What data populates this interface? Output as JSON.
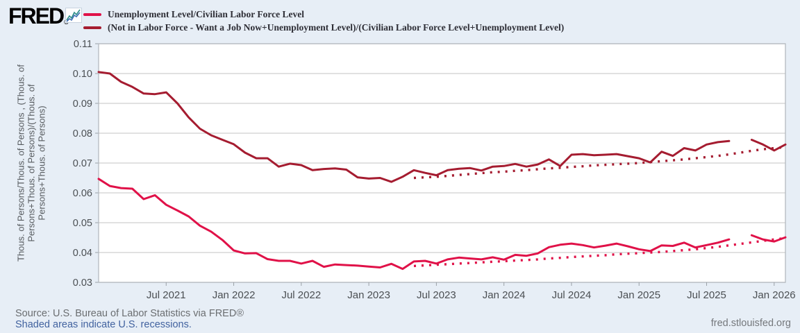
{
  "branding": {
    "logo_text": "FRED",
    "registered_mark": "®",
    "site_url": "fred.stlouisfed.org"
  },
  "footer": {
    "source_line": "Source: U.S. Bureau of Labor Statistics via FRED®",
    "recessions_note": "Shaded areas indicate U.S. recessions."
  },
  "chart_data": {
    "type": "line",
    "title": "",
    "xlabel": "",
    "ylabel": "Thous. of Persons/Thous. of Persons , (Thous. of Persons+Thous. of Persons)/(Thous. of Persons+Thous. of Persons)",
    "ylabel_lines": [
      "Thous. of Persons/Thous. of Persons , (Thous. of",
      "Persons+Thous. of Persons)/(Thous. of",
      "Persons+Thous. of Persons)"
    ],
    "ylim": [
      0.03,
      0.11
    ],
    "yticks": [
      "0.11",
      "0.10",
      "0.09",
      "0.08",
      "0.07",
      "0.06",
      "0.05",
      "0.04",
      "0.03"
    ],
    "grid": "horizontal",
    "legend_position": "top-left",
    "plot_bg": "#ffffff",
    "grid_color": "#cfcfcf",
    "border_color": "#b4bac0",
    "tick_color": "#9aa0a6",
    "months": [
      "2021-01",
      "2021-02",
      "2021-03",
      "2021-04",
      "2021-05",
      "2021-06",
      "2021-07",
      "2021-08",
      "2021-09",
      "2021-10",
      "2021-11",
      "2021-12",
      "2022-01",
      "2022-02",
      "2022-03",
      "2022-04",
      "2022-05",
      "2022-06",
      "2022-07",
      "2022-08",
      "2022-09",
      "2022-10",
      "2022-11",
      "2022-12",
      "2023-01",
      "2023-02",
      "2023-03",
      "2023-04",
      "2023-05",
      "2023-06",
      "2023-07",
      "2023-08",
      "2023-09",
      "2023-10",
      "2023-11",
      "2023-12",
      "2024-01",
      "2024-02",
      "2024-03",
      "2024-04",
      "2024-05",
      "2024-06",
      "2024-07",
      "2024-08",
      "2024-09",
      "2024-10",
      "2024-11",
      "2024-12",
      "2025-01",
      "2025-02",
      "2025-03",
      "2025-04",
      "2025-05",
      "2025-06",
      "2025-07",
      "2025-08",
      "2025-09",
      "2025-10",
      "2025-11",
      "2025-12",
      "2026-01",
      "2026-02"
    ],
    "xticks": [
      {
        "index": 6,
        "label": "Jul 2021"
      },
      {
        "index": 12,
        "label": "Jan 2022"
      },
      {
        "index": 18,
        "label": "Jul 2022"
      },
      {
        "index": 24,
        "label": "Jan 2023"
      },
      {
        "index": 30,
        "label": "Jul 2023"
      },
      {
        "index": 36,
        "label": "Jan 2024"
      },
      {
        "index": 42,
        "label": "Jul 2024"
      },
      {
        "index": 48,
        "label": "Jan 2025"
      },
      {
        "index": 54,
        "label": "Jul 2025"
      },
      {
        "index": 60,
        "label": "Jan 2026"
      }
    ],
    "series": [
      {
        "name": "Unemployment Level/Civilian Labor Force Level",
        "style": "solid",
        "color": "#e01148",
        "values": [
          0.0647,
          0.0623,
          0.0616,
          0.0614,
          0.0579,
          0.0592,
          0.056,
          0.0541,
          0.0521,
          0.049,
          0.047,
          0.0442,
          0.0407,
          0.0397,
          0.0398,
          0.0378,
          0.0372,
          0.0372,
          0.0363,
          0.0372,
          0.0352,
          0.036,
          0.0358,
          0.0356,
          0.0353,
          0.035,
          0.0362,
          0.0345,
          0.037,
          0.0372,
          0.0363,
          0.0377,
          0.0383,
          0.038,
          0.0377,
          0.0384,
          0.0376,
          0.0392,
          0.0389,
          0.0397,
          0.0418,
          0.0426,
          0.043,
          0.0425,
          0.0417,
          0.0423,
          0.043,
          0.0421,
          0.0411,
          0.0405,
          0.0424,
          0.0422,
          0.0433,
          0.0417,
          0.0425,
          0.0433,
          0.0444,
          null,
          0.0458,
          0.0444,
          0.0437,
          0.0451
        ]
      },
      {
        "name": "(Not in Labor Force - Want a Job Now+Unemployment Level)/(Civilian Labor Force Level+Unemployment Level)",
        "style": "solid",
        "color": "#a51c30",
        "values": [
          0.1005,
          0.1,
          0.0972,
          0.0955,
          0.0933,
          0.0931,
          0.0937,
          0.09,
          0.0853,
          0.0815,
          0.0793,
          0.0778,
          0.0763,
          0.0735,
          0.0716,
          0.0716,
          0.0688,
          0.0698,
          0.0693,
          0.0676,
          0.068,
          0.0682,
          0.0678,
          0.0652,
          0.0648,
          0.065,
          0.0637,
          0.0654,
          0.0676,
          0.0667,
          0.0659,
          0.0676,
          0.0681,
          0.0683,
          0.0675,
          0.0688,
          0.069,
          0.0697,
          0.0688,
          0.0695,
          0.0712,
          0.069,
          0.0728,
          0.073,
          0.0726,
          0.0728,
          0.073,
          0.0723,
          0.0716,
          0.0702,
          0.0738,
          0.0724,
          0.075,
          0.0742,
          0.0762,
          0.077,
          0.0774,
          null,
          0.0778,
          0.0762,
          0.0742,
          0.0762
        ]
      },
      {
        "name": "Unemployment Level/Civilian Labor Force Level (dotted trend)",
        "style": "dotted",
        "color": "#e01148",
        "values": [
          null,
          null,
          null,
          null,
          null,
          null,
          null,
          null,
          null,
          null,
          null,
          null,
          null,
          null,
          null,
          null,
          null,
          null,
          null,
          null,
          null,
          null,
          null,
          null,
          null,
          null,
          null,
          null,
          0.0355,
          0.0357,
          0.0359,
          0.0361,
          0.0363,
          0.0365,
          0.0367,
          0.0369,
          0.0371,
          0.0373,
          0.0375,
          0.0377,
          0.038,
          0.0382,
          0.0385,
          0.0387,
          0.0389,
          0.0391,
          0.0394,
          0.0396,
          0.0398,
          0.04,
          0.0402,
          0.0405,
          0.0408,
          0.0411,
          0.0415,
          0.0419,
          0.0424,
          0.0429,
          0.0434,
          0.0439,
          0.0444,
          0.0448
        ]
      },
      {
        "name": "(Not in Labor Force - Want a Job Now+Unemployment Level)/(Civilian Labor Force Level+Unemployment Level) (dotted trend)",
        "style": "dotted",
        "color": "#a51c30",
        "values": [
          null,
          null,
          null,
          null,
          null,
          null,
          null,
          null,
          null,
          null,
          null,
          null,
          null,
          null,
          null,
          null,
          null,
          null,
          null,
          null,
          null,
          null,
          null,
          null,
          null,
          null,
          null,
          null,
          0.065,
          0.0652,
          0.0654,
          0.0657,
          0.066,
          0.0663,
          0.0666,
          0.0669,
          0.0671,
          0.0674,
          0.0676,
          0.0679,
          0.0682,
          0.0684,
          0.0687,
          0.0689,
          0.0692,
          0.0694,
          0.0696,
          0.0698,
          0.07,
          0.0703,
          0.0706,
          0.0709,
          0.0712,
          0.0716,
          0.072,
          0.0724,
          0.0729,
          0.0735,
          0.0741,
          0.0746,
          0.075,
          0.0753
        ]
      }
    ]
  }
}
